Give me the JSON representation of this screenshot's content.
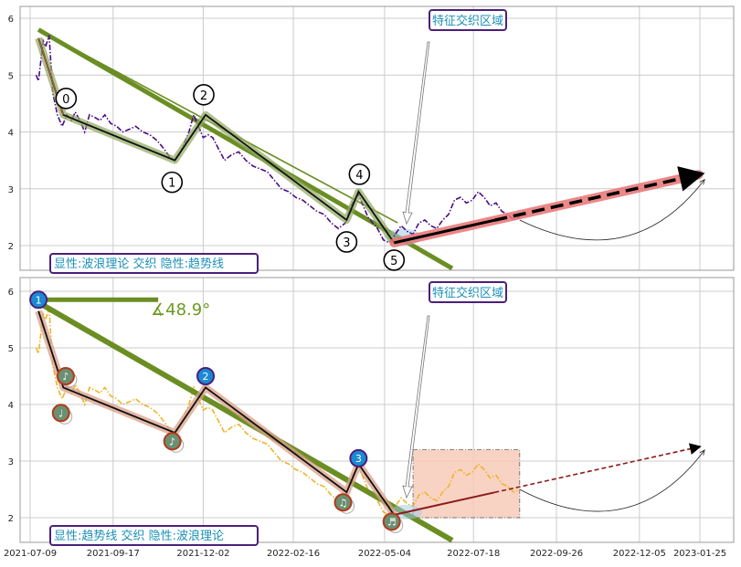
{
  "chart_data": [
    {
      "type": "line",
      "panel": "top",
      "ylim": [
        1.6,
        6.2
      ],
      "yticks": [
        2,
        3,
        4,
        5,
        6
      ],
      "grid": true,
      "annotation_box": "特征交织区域",
      "legend_label": "显性:波浪理论 交织 隐性:趋势线",
      "colors": {
        "price": "#4b0d84",
        "wave": "#111111",
        "wave_glow": "#8fa860",
        "trend": "#6b8e23",
        "forecast": "#e97373",
        "forecast_line": "#000000"
      },
      "series": [
        {
          "name": "",
          "x": [
            "2021-07-14",
            "2021-07-16",
            "2021-07-20",
            "2021-07-22",
            "2021-07-25",
            "2021-07-28",
            "2021-08-01",
            "2021-08-05",
            "2021-08-09",
            "2021-08-13",
            "2021-08-16",
            "2021-08-20",
            "2021-08-24",
            "2021-08-28",
            "2021-09-02",
            "2021-09-06",
            "2021-09-10",
            "2021-09-15",
            "2021-09-20",
            "2021-09-25",
            "2021-10-01",
            "2021-10-06",
            "2021-10-12",
            "2021-10-18",
            "2021-10-24",
            "2021-10-30",
            "2021-11-04",
            "2021-11-08",
            "2021-11-12",
            "2021-11-16",
            "2021-11-20",
            "2021-11-24",
            "2021-11-28",
            "2021-12-02",
            "2021-12-06",
            "2021-12-10",
            "2021-12-15",
            "2021-12-20",
            "2021-12-26",
            "2022-01-01",
            "2022-01-07",
            "2022-01-13",
            "2022-01-19",
            "2022-01-25",
            "2022-01-31",
            "2022-02-06",
            "2022-02-12",
            "2022-02-18",
            "2022-02-24",
            "2022-03-02",
            "2022-03-08",
            "2022-03-14",
            "2022-03-20",
            "2022-03-26",
            "2022-04-01",
            "2022-04-05",
            "2022-04-08",
            "2022-04-12",
            "2022-04-16",
            "2022-04-20",
            "2022-04-24",
            "2022-04-28",
            "2022-05-03",
            "2022-05-08",
            "2022-05-13",
            "2022-05-18",
            "2022-05-23",
            "2022-05-28",
            "2022-06-02",
            "2022-06-07",
            "2022-06-12",
            "2022-06-17",
            "2022-06-22",
            "2022-06-27",
            "2022-07-02",
            "2022-07-07",
            "2022-07-12",
            "2022-07-17",
            "2022-07-22",
            "2022-07-27",
            "2022-08-01",
            "2022-08-06",
            "2022-08-11",
            "2022-08-16",
            "2022-08-21",
            "2022-08-26"
          ],
          "values": [
            5.0,
            4.9,
            5.6,
            5.5,
            5.7,
            4.7,
            4.3,
            4.1,
            4.3,
            4.2,
            4.35,
            4.2,
            4.0,
            4.3,
            4.25,
            4.2,
            4.3,
            4.15,
            4.1,
            4.0,
            4.05,
            4.1,
            4.0,
            3.95,
            3.85,
            3.7,
            3.55,
            3.5,
            3.6,
            3.8,
            4.0,
            4.3,
            4.1,
            3.9,
            3.95,
            3.9,
            3.7,
            3.5,
            3.6,
            3.65,
            3.5,
            3.4,
            3.35,
            3.3,
            3.15,
            3.0,
            2.95,
            2.85,
            2.8,
            2.7,
            2.6,
            2.55,
            2.4,
            2.3,
            2.4,
            2.65,
            2.8,
            2.9,
            2.7,
            2.5,
            2.4,
            2.3,
            2.1,
            2.05,
            2.2,
            2.35,
            2.25,
            2.2,
            2.4,
            2.45,
            2.35,
            2.3,
            2.45,
            2.55,
            2.8,
            2.85,
            2.75,
            2.8,
            2.95,
            2.85,
            2.7,
            2.75,
            2.6,
            2.55,
            2.45,
            2.5
          ]
        },
        {
          "name": "",
          "role": "wave",
          "x": [
            "2021-07-16",
            "2021-08-06",
            "2021-11-08",
            "2021-12-04",
            "2022-04-02",
            "2022-04-12",
            "2022-05-12"
          ],
          "values": [
            5.65,
            4.3,
            3.5,
            4.3,
            2.45,
            2.95,
            2.05
          ]
        },
        {
          "name": "",
          "role": "trend",
          "x": [
            "2021-07-16",
            "2022-06-30"
          ],
          "values": [
            5.8,
            1.6
          ]
        },
        {
          "name": "",
          "role": "trend-upper",
          "x": [
            "2021-07-16",
            "2022-05-15"
          ],
          "values": [
            5.8,
            2.4
          ]
        },
        {
          "name": "",
          "role": "forecast",
          "x": [
            "2022-05-12",
            "2023-01-24"
          ],
          "values": [
            2.05,
            3.25
          ]
        }
      ],
      "wave_labels": [
        {
          "label": "0",
          "x": "2021-08-06",
          "y": 4.3
        },
        {
          "label": "1",
          "x": "2021-11-08",
          "y": 3.5
        },
        {
          "label": "2",
          "x": "2021-12-04",
          "y": 4.3
        },
        {
          "label": "3",
          "x": "2022-04-02",
          "y": 2.45
        },
        {
          "label": "4",
          "x": "2022-04-12",
          "y": 2.95
        },
        {
          "label": "5",
          "x": "2022-05-12",
          "y": 2.05
        }
      ]
    },
    {
      "type": "line",
      "panel": "bottom",
      "ylim": [
        1.6,
        6.2
      ],
      "yticks": [
        2,
        3,
        4,
        5,
        6
      ],
      "grid": true,
      "annotation_box": "特征交织区域",
      "legend_label": "显性:趋势线 交织 隐性:波浪理论",
      "angle_label": "∡48.9°",
      "colors": {
        "price": "#f0b429",
        "wave": "#111111",
        "wave_glow": "#d9a08a",
        "trend": "#6b8e23",
        "forecast_line": "#000000",
        "highlight": "#f7c9b6",
        "marker_blue": "#1a8ad4",
        "marker_green": "#6b8f71",
        "marker_ring": "#b33a1a"
      },
      "series": [
        {
          "name": "",
          "role": "wave",
          "x": [
            "2021-07-16",
            "2021-08-06",
            "2021-11-08",
            "2021-12-04",
            "2022-04-02",
            "2022-04-12",
            "2022-05-12"
          ],
          "values": [
            5.65,
            4.3,
            3.5,
            4.3,
            2.45,
            2.95,
            2.05
          ]
        },
        {
          "name": "",
          "role": "trend",
          "x": [
            "2021-07-16",
            "2022-06-30"
          ],
          "values": [
            5.8,
            1.6
          ]
        },
        {
          "name": "",
          "role": "forecast",
          "x": [
            "2022-05-12",
            "2023-01-24"
          ],
          "values": [
            2.05,
            3.25
          ]
        }
      ],
      "blue_markers": [
        {
          "label": "1",
          "x": "2021-07-16",
          "y": 5.85
        },
        {
          "label": "2",
          "x": "2021-12-04",
          "y": 4.5
        },
        {
          "label": "3",
          "x": "2022-04-12",
          "y": 3.05
        }
      ],
      "green_markers": [
        {
          "label": "♩",
          "x": "2021-08-04",
          "y": 3.85
        },
        {
          "label": "♪",
          "x": "2021-08-08",
          "y": 4.5
        },
        {
          "label": "♪",
          "x": "2021-11-06",
          "y": 3.35
        },
        {
          "label": "♫",
          "x": "2022-03-30",
          "y": 2.27
        },
        {
          "label": "♬",
          "x": "2022-05-10",
          "y": 1.93
        }
      ],
      "highlight_region": {
        "x": [
          "2022-05-28",
          "2022-08-26"
        ],
        "y": [
          2.0,
          3.2
        ]
      }
    }
  ],
  "x_axis": {
    "tick_labels": [
      "2021-07-09",
      "2021-09-17",
      "2021-12-02",
      "2022-02-16",
      "2022-05-04",
      "2022-07-18",
      "2022-09-26",
      "2022-12-05",
      "2023-01-25"
    ]
  }
}
